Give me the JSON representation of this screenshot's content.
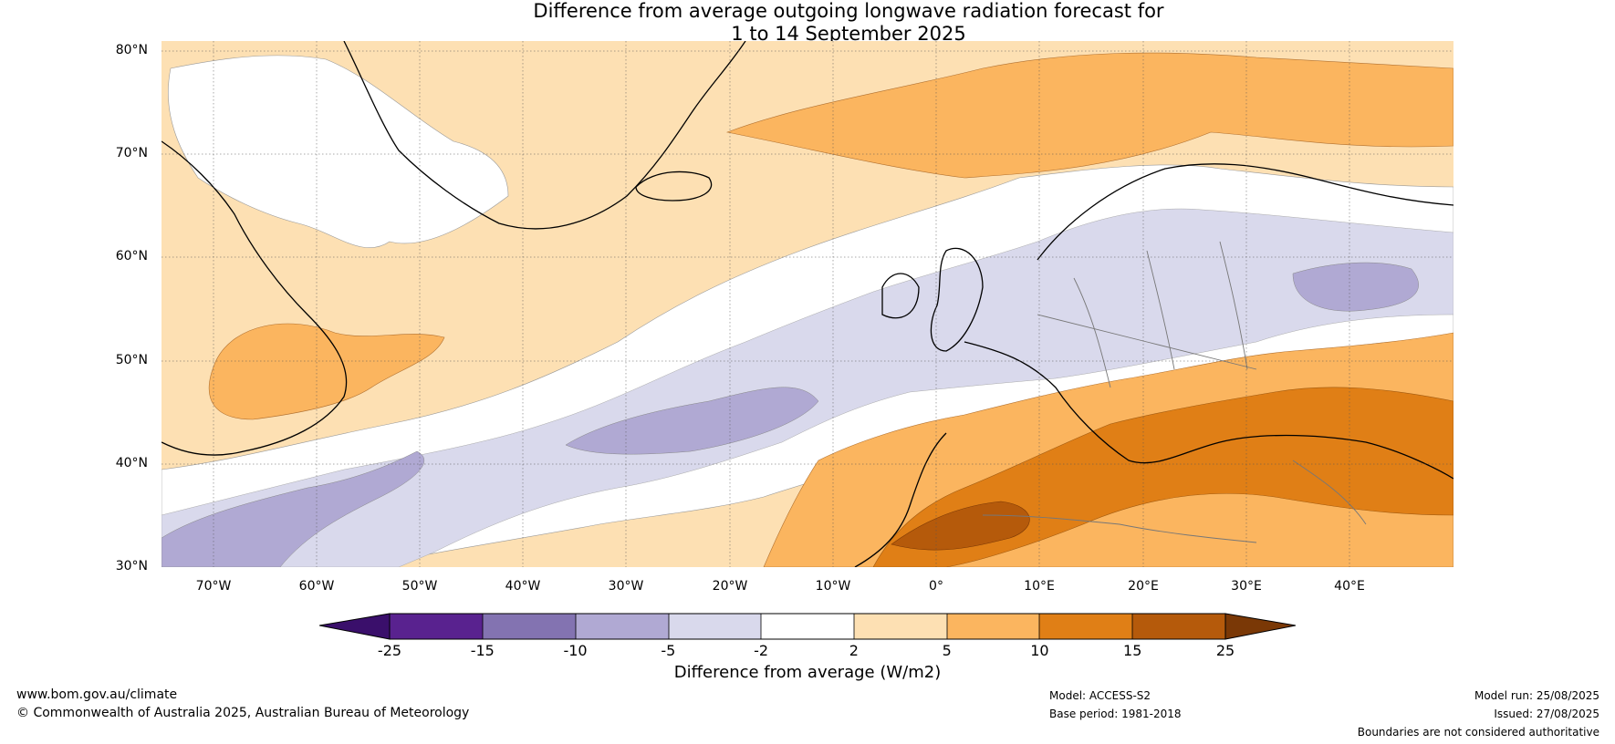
{
  "title": {
    "line1": "Difference from average outgoing longwave radiation forecast for",
    "line2": "1 to 14 September 2025"
  },
  "map": {
    "lat_labels": [
      "80°N",
      "70°N",
      "60°N",
      "50°N",
      "40°N",
      "30°N"
    ],
    "lon_labels": [
      "70°W",
      "60°W",
      "50°W",
      "40°W",
      "30°W",
      "20°W",
      "10°W",
      "0°",
      "10°E",
      "20°E",
      "30°E",
      "40°E"
    ],
    "extent": {
      "lon_min": -75,
      "lon_max": 50,
      "lat_min": 30,
      "lat_max": 81
    }
  },
  "colorbar": {
    "ticks": [
      "-25",
      "-15",
      "-10",
      "-5",
      "-2",
      "2",
      "5",
      "10",
      "15",
      "25"
    ],
    "colors": [
      "#3a0f6b",
      "#59228f",
      "#8373b1",
      "#b0a9d3",
      "#d9d9ec",
      "#ffffff",
      "#fde0b3",
      "#fbb55f",
      "#e07f16",
      "#b55a0b",
      "#7a3806"
    ],
    "label": "Difference from average (W/m2)"
  },
  "footer": {
    "website": "www.bom.gov.au/climate",
    "copyright": "© Commonwealth of Australia 2025, Australian Bureau of Meteorology",
    "model": "Model: ACCESS-S2",
    "base_period": "Base period: 1981-2018",
    "model_run": "Model run: 25/08/2025",
    "issued": "Issued: 27/08/2025",
    "disclaimer": "Boundaries are not considered authoritative"
  }
}
